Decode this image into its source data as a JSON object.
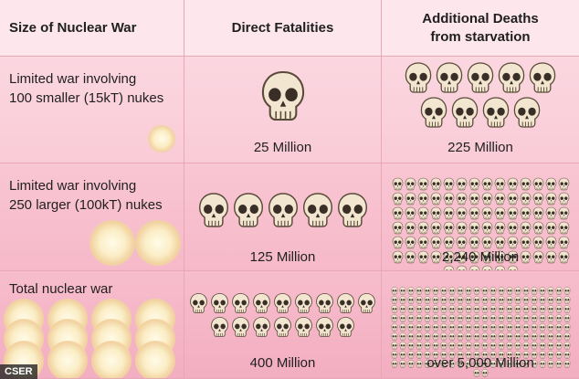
{
  "headers": {
    "size": "Size of Nuclear War",
    "direct": "Direct Fatalities",
    "additional_line1": "Additional Deaths",
    "additional_line2": "from starvation"
  },
  "rows": [
    {
      "label_line1": "Limited war involving",
      "label_line2": "100 smaller (15kT) nukes",
      "direct": "25 Million",
      "additional": "225 Million",
      "blast_count": 1,
      "direct_skulls": 1,
      "additional_skulls": 9
    },
    {
      "label_line1": "Limited war involving",
      "label_line2": "250 larger (100kT) nukes",
      "direct": "125 Million",
      "additional": "2,240 Million",
      "blast_count": 2,
      "direct_skulls": 5,
      "additional_skulls": 90
    },
    {
      "label_line1": "Total nuclear war",
      "label_line2": "",
      "direct": "400 Million",
      "additional": "over 5,000 Million",
      "blast_count": 12,
      "direct_skulls": 16,
      "additional_skulls": 200
    }
  ],
  "credit": "CSER",
  "colors": {
    "header_bg": "#fde7ed",
    "row_bg": "#f9cbd7",
    "divider": "#e7a7b7",
    "skull": "#f2e6d0"
  }
}
